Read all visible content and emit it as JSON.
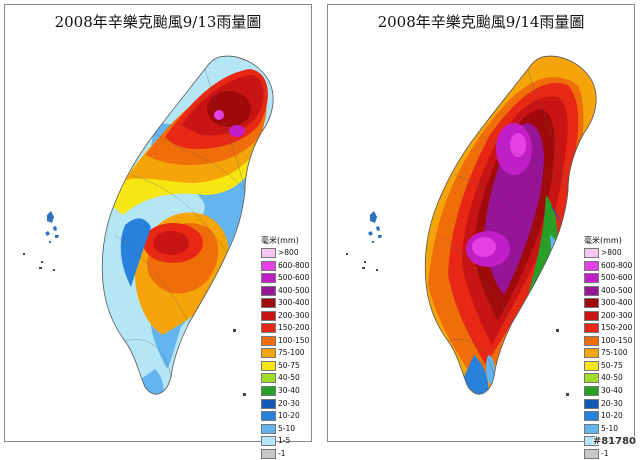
{
  "panels": [
    {
      "title": "2008年辛樂克颱風9/13雨量圖"
    },
    {
      "title": "2008年辛樂克颱風9/14雨量圖"
    }
  ],
  "legend": {
    "unit": "毫米(mm)",
    "classes": [
      {
        "label": ">800",
        "color": "#f5c6f0"
      },
      {
        "label": "600-800",
        "color": "#e640e6"
      },
      {
        "label": "500-600",
        "color": "#c21ec8"
      },
      {
        "label": "400-500",
        "color": "#961496"
      },
      {
        "label": "300-400",
        "color": "#a00a0a"
      },
      {
        "label": "200-300",
        "color": "#c81414"
      },
      {
        "label": "150-200",
        "color": "#e62814"
      },
      {
        "label": "100-150",
        "color": "#f06e0a"
      },
      {
        "label": "75-100",
        "color": "#f5a50a"
      },
      {
        "label": "50-75",
        "color": "#f5e614"
      },
      {
        "label": "40-50",
        "color": "#a0dc28"
      },
      {
        "label": "30-40",
        "color": "#28a028"
      },
      {
        "label": "20-30",
        "color": "#145ab4"
      },
      {
        "label": "10-20",
        "color": "#2882dc"
      },
      {
        "label": "5-10",
        "color": "#64b4f0"
      },
      {
        "label": "1-5",
        "color": "#b4e6f5"
      },
      {
        "label": "-1",
        "color": "#c8c8c8"
      }
    ]
  },
  "watermark": "#81780"
}
